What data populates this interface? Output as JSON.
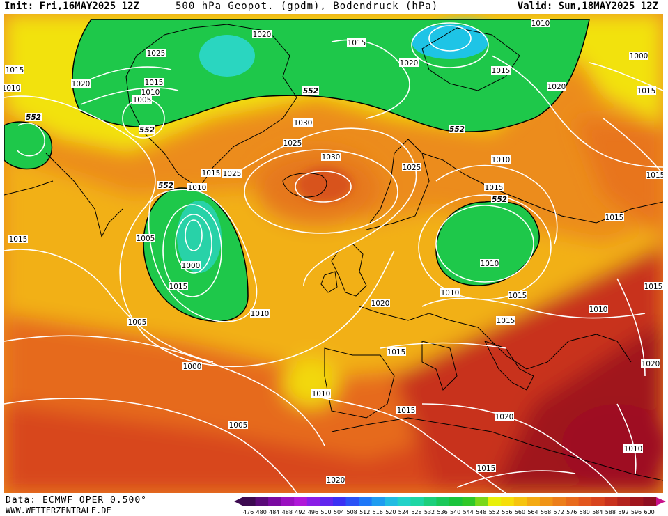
{
  "header": {
    "init": "Init: Fri,16MAY2025 12Z",
    "title": "500 hPa Geopot. (gpdm), Bodendruck (hPa)",
    "valid": "Valid: Sun,18MAY2025 12Z"
  },
  "footer": {
    "data_source": "Data: ECMWF OPER 0.500°",
    "website": "WWW.WETTERZENTRALE.DE"
  },
  "colors": {
    "green_low": "#16c83a",
    "cyan_low": "#1ed2b0",
    "yellow": "#f2ee0c",
    "orange_mid": "#f0a018",
    "orange_deep": "#e8781e",
    "red_high": "#c8321e",
    "darkred": "#9e1020",
    "isobar": "#ffffff",
    "coast": "#000000"
  },
  "legend": {
    "values": [
      "476",
      "480",
      "484",
      "488",
      "492",
      "496",
      "500",
      "504",
      "508",
      "512",
      "516",
      "520",
      "524",
      "528",
      "532",
      "536",
      "540",
      "544",
      "548",
      "552",
      "556",
      "560",
      "564",
      "568",
      "572",
      "576",
      "580",
      "584",
      "588",
      "592",
      "596",
      "600"
    ],
    "colors": [
      "#3c0a50",
      "#5a0a78",
      "#7a0aa0",
      "#9a10c0",
      "#b018d8",
      "#8a1ee6",
      "#6026ee",
      "#3a30f4",
      "#2a52f6",
      "#1e78f8",
      "#1e9cf0",
      "#22bce2",
      "#22d2c8",
      "#1ed6a4",
      "#1ccf7c",
      "#1ac85a",
      "#1ac43c",
      "#30c828",
      "#7ad81a",
      "#e8f00a",
      "#f6de0a",
      "#f6c40e",
      "#f4aa12",
      "#f09416",
      "#ec7e1a",
      "#e86a1c",
      "#e2561e",
      "#d8441e",
      "#c8321e",
      "#b4241e",
      "#a0161e",
      "#8e0e22"
    ]
  },
  "isobar_labels": [
    "1015",
    "1010",
    "1020",
    "1025",
    "1015",
    "1010",
    "1005",
    "1000",
    "1020",
    "1015",
    "1020",
    "1010",
    "1015",
    "1000",
    "1015",
    "1020",
    "1030",
    "1025",
    "1030",
    "1025",
    "1010",
    "1005",
    "1015",
    "1015",
    "1010",
    "1005",
    "1000",
    "1005",
    "1010",
    "1020",
    "1025",
    "1010",
    "1015",
    "1015",
    "1010",
    "1010",
    "1015",
    "1010",
    "1015",
    "1015",
    "1015",
    "1015",
    "1020",
    "1015",
    "1020",
    "1020",
    "1010",
    "1015",
    "1015"
  ],
  "height_labels": [
    "552",
    "552",
    "552",
    "552",
    "552",
    "552"
  ]
}
